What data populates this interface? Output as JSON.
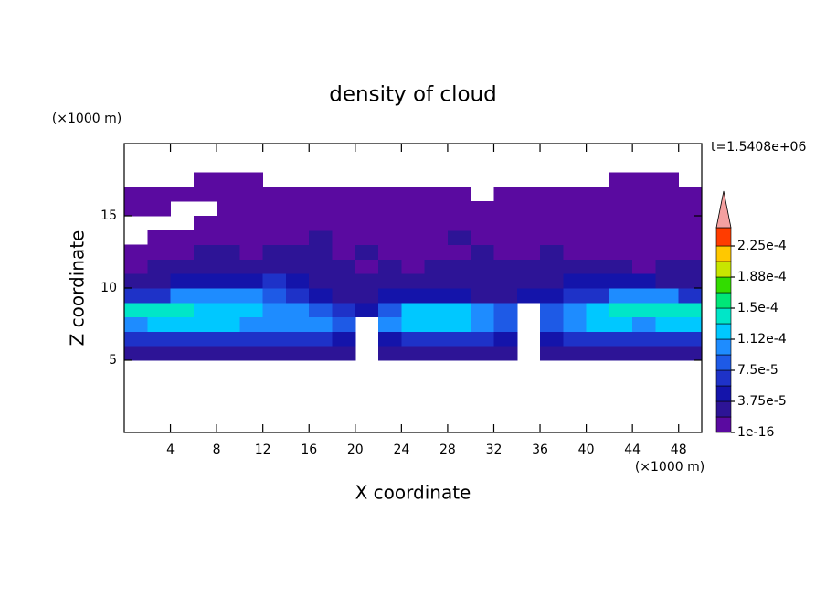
{
  "chart_data": {
    "type": "contour",
    "title": "density of cloud",
    "x_label": "X coordinate",
    "y_label": "Z coordinate",
    "x_unit": "(×1000 m)",
    "y_unit": "(×1000 m)",
    "time_label": "t=1.5408e+06",
    "xlim": [
      0,
      50
    ],
    "xticks": [
      4,
      8,
      12,
      16,
      20,
      24,
      28,
      32,
      36,
      40,
      44,
      48
    ],
    "ylim": [
      0,
      20
    ],
    "yticks": [
      5,
      10,
      15
    ],
    "x": [
      1,
      3,
      5,
      7,
      9,
      11,
      13,
      15,
      17,
      19,
      21,
      23,
      25,
      27,
      29,
      31,
      33,
      35,
      37,
      39,
      41,
      43,
      45,
      47,
      49
    ],
    "y": [
      5.5,
      6.5,
      7.5,
      8.5,
      9.5,
      10.5,
      11.5,
      12.5,
      13.5,
      14.5,
      15.5,
      16.5,
      17.5
    ],
    "values": [
      [
        2e-05,
        2e-05,
        2e-05,
        2e-05,
        2e-05,
        2e-05,
        2e-05,
        2e-05,
        2e-05,
        2e-05,
        null,
        2e-05,
        2e-05,
        2e-05,
        2e-05,
        2e-05,
        2e-05,
        null,
        2e-05,
        2e-05,
        2e-05,
        2e-05,
        2e-05,
        2e-05,
        2e-05
      ],
      [
        6e-05,
        6e-05,
        6e-05,
        6e-05,
        6e-05,
        6e-05,
        6e-05,
        6e-05,
        6e-05,
        4e-05,
        null,
        4e-05,
        6e-05,
        6e-05,
        6e-05,
        6e-05,
        4e-05,
        null,
        4e-05,
        6e-05,
        6e-05,
        6e-05,
        6e-05,
        6e-05,
        6e-05
      ],
      [
        0.000105,
        0.00012,
        0.00012,
        0.00012,
        0.00012,
        0.000105,
        0.000105,
        0.000105,
        0.000105,
        8e-05,
        null,
        0.000105,
        0.00012,
        0.00012,
        0.00012,
        0.000105,
        8e-05,
        null,
        8e-05,
        0.000105,
        0.00012,
        0.00012,
        0.000105,
        0.00012,
        0.00012
      ],
      [
        0.00014,
        0.00014,
        0.00014,
        0.00012,
        0.00012,
        0.00012,
        0.000105,
        0.000105,
        8e-05,
        6e-05,
        4e-05,
        8e-05,
        0.00012,
        0.00012,
        0.00012,
        0.000105,
        8e-05,
        null,
        8e-05,
        0.000105,
        0.00012,
        0.00014,
        0.00014,
        0.00014,
        0.00014
      ],
      [
        6e-05,
        6e-05,
        0.000105,
        0.000105,
        0.000105,
        0.000105,
        8e-05,
        6e-05,
        4e-05,
        2e-05,
        2e-05,
        4e-05,
        4e-05,
        4e-05,
        4e-05,
        2e-05,
        2e-05,
        4e-05,
        4e-05,
        6e-05,
        6e-05,
        0.000105,
        0.000105,
        0.000105,
        6e-05
      ],
      [
        2e-05,
        2e-05,
        4e-05,
        4e-05,
        4e-05,
        4e-05,
        6e-05,
        4e-05,
        2e-05,
        2e-05,
        2e-05,
        2e-05,
        2e-05,
        2e-05,
        2e-05,
        2e-05,
        2e-05,
        2e-05,
        2e-05,
        4e-05,
        4e-05,
        4e-05,
        4e-05,
        2e-05,
        2e-05
      ],
      [
        1e-06,
        2e-05,
        2e-05,
        2e-05,
        2e-05,
        2e-05,
        2e-05,
        2e-05,
        2e-05,
        2e-05,
        1e-06,
        2e-05,
        1e-06,
        2e-05,
        2e-05,
        2e-05,
        2e-05,
        2e-05,
        2e-05,
        2e-05,
        2e-05,
        2e-05,
        1e-06,
        2e-05,
        2e-05
      ],
      [
        1e-06,
        1e-06,
        1e-06,
        2e-05,
        2e-05,
        1e-06,
        2e-05,
        2e-05,
        2e-05,
        1e-06,
        2e-05,
        1e-06,
        1e-06,
        1e-06,
        1e-06,
        2e-05,
        1e-06,
        1e-06,
        2e-05,
        1e-06,
        1e-06,
        1e-06,
        1e-06,
        1e-06,
        1e-06
      ],
      [
        null,
        1e-06,
        1e-06,
        1e-06,
        1e-06,
        1e-06,
        1e-06,
        1e-06,
        2e-05,
        1e-06,
        1e-06,
        1e-06,
        1e-06,
        1e-06,
        2e-05,
        1e-06,
        1e-06,
        1e-06,
        1e-06,
        1e-06,
        1e-06,
        1e-06,
        1e-06,
        1e-06,
        1e-06
      ],
      [
        null,
        null,
        null,
        1e-06,
        1e-06,
        1e-06,
        1e-06,
        1e-06,
        1e-06,
        1e-06,
        1e-06,
        1e-06,
        1e-06,
        1e-06,
        1e-06,
        1e-06,
        1e-06,
        1e-06,
        1e-06,
        1e-06,
        1e-06,
        1e-06,
        1e-06,
        1e-06,
        1e-06
      ],
      [
        1e-06,
        1e-06,
        null,
        null,
        1e-06,
        1e-06,
        1e-06,
        1e-06,
        1e-06,
        1e-06,
        1e-06,
        1e-06,
        1e-06,
        1e-06,
        1e-06,
        1e-06,
        1e-06,
        1e-06,
        1e-06,
        1e-06,
        1e-06,
        1e-06,
        1e-06,
        1e-06,
        1e-06
      ],
      [
        1e-06,
        1e-06,
        1e-06,
        1e-06,
        1e-06,
        1e-06,
        1e-06,
        1e-06,
        1e-06,
        1e-06,
        1e-06,
        1e-06,
        1e-06,
        1e-06,
        1e-06,
        null,
        1e-06,
        1e-06,
        1e-06,
        1e-06,
        1e-06,
        1e-06,
        1e-06,
        1e-06,
        1e-06
      ],
      [
        null,
        null,
        null,
        1e-06,
        1e-06,
        1e-06,
        null,
        null,
        null,
        null,
        null,
        null,
        null,
        null,
        null,
        null,
        null,
        null,
        null,
        null,
        null,
        1e-06,
        1e-06,
        1e-06,
        null
      ]
    ],
    "levels": [
      1e-16,
      1.875e-05,
      3.75e-05,
      5.625e-05,
      7.5e-05,
      9.375e-05,
      0.0001125,
      0.00013125,
      0.00015,
      0.00016875,
      0.0001875,
      0.00020625,
      0.000225
    ],
    "colors": [
      "#5a0aa0",
      "#2d1496",
      "#1414aa",
      "#1e32c8",
      "#1e5ae6",
      "#1e8cff",
      "#00c8ff",
      "#00e6c8",
      "#00e678",
      "#32dc00",
      "#c8e600",
      "#ffc800",
      "#ff3c00"
    ],
    "extend_color": "#f4a0a0",
    "colorbar_ticks": [
      1e-16,
      {
        "value": 3.75e-05,
        "label": "3.75e-5"
      },
      {
        "value": 7.5e-05,
        "label": "7.5e-5"
      },
      {
        "value": 0.0001125,
        "label": "1.12e-4"
      },
      {
        "value": 0.00015,
        "label": "1.5e-4"
      },
      {
        "value": 0.0001875,
        "label": "1.88e-4"
      },
      {
        "value": 0.000225,
        "label": "2.25e-4"
      }
    ]
  }
}
